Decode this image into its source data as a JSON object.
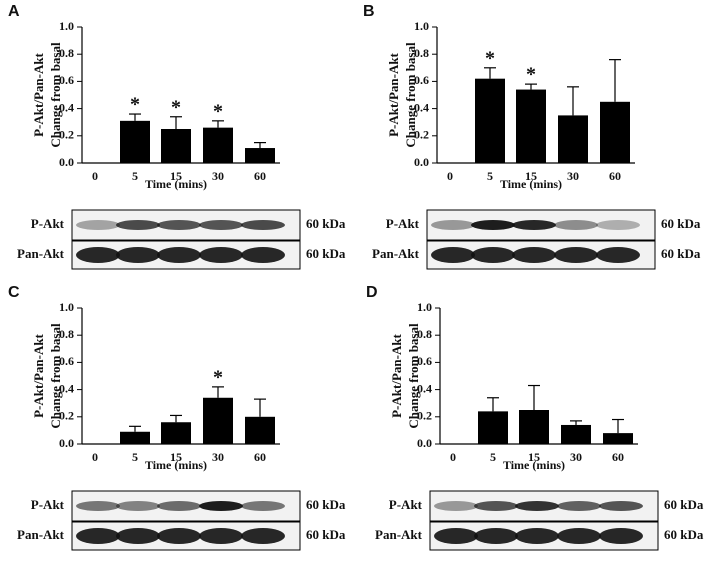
{
  "chart_data": [
    {
      "type": "bar",
      "panel": "A",
      "ylabel": [
        "P-Akt/Pan-Akt",
        "Change from basal"
      ],
      "xlabel": "Time (mins)",
      "categories": [
        "0",
        "5",
        "15",
        "30",
        "60"
      ],
      "values": [
        0,
        0.31,
        0.25,
        0.26,
        0.11
      ],
      "errors": [
        null,
        0.05,
        0.09,
        0.05,
        0.04
      ],
      "color": "#000000",
      "ylim": [
        0,
        1
      ],
      "yticks": [
        {
          "value": 0,
          "label": "0.0"
        },
        0.2,
        0.4,
        0.6,
        0.8,
        {
          "value": 1,
          "label": "1.0"
        }
      ],
      "annotations": [
        {
          "category": "5",
          "text": "*"
        },
        {
          "category": "15",
          "text": "*"
        },
        {
          "category": "30",
          "text": "*"
        }
      ],
      "blot": {
        "rows": [
          "P-Akt",
          "Pan-Akt"
        ],
        "size": "60 kDa"
      }
    },
    {
      "type": "bar",
      "panel": "B",
      "ylabel": [
        "P-Akt/Pan-Akt",
        "Change from basal"
      ],
      "xlabel": "Time (mins)",
      "categories": [
        "0",
        "5",
        "15",
        "30",
        "60"
      ],
      "values": [
        0,
        0.62,
        0.54,
        0.35,
        0.45
      ],
      "errors": [
        null,
        0.08,
        0.04,
        0.21,
        0.31
      ],
      "color": "#000000",
      "ylim": [
        0,
        1
      ],
      "yticks": [
        {
          "value": 0,
          "label": "0.0"
        },
        0.2,
        0.4,
        0.6,
        0.8,
        {
          "value": 1,
          "label": "1.0"
        }
      ],
      "annotations": [
        {
          "category": "5",
          "text": "*"
        },
        {
          "category": "15",
          "text": "*"
        }
      ],
      "blot": {
        "rows": [
          "P-Akt",
          "Pan-Akt"
        ],
        "size": "60 kDa"
      }
    },
    {
      "type": "bar",
      "panel": "C",
      "ylabel": [
        "P-Akt/Pan-Akt",
        "Change from basal"
      ],
      "xlabel": "Time (mins)",
      "categories": [
        "0",
        "5",
        "15",
        "30",
        "60"
      ],
      "values": [
        0,
        0.09,
        0.16,
        0.34,
        0.2
      ],
      "errors": [
        null,
        0.04,
        0.05,
        0.08,
        0.13
      ],
      "color": "#000000",
      "ylim": [
        0,
        1
      ],
      "yticks": [
        {
          "value": 0,
          "label": "0.0"
        },
        0.2,
        0.4,
        0.6,
        0.8,
        {
          "value": 1,
          "label": "1.0"
        }
      ],
      "annotations": [
        {
          "category": "30",
          "text": "*"
        }
      ],
      "blot": {
        "rows": [
          "P-Akt",
          "Pan-Akt"
        ],
        "size": "60 kDa"
      }
    },
    {
      "type": "bar",
      "panel": "D",
      "ylabel": [
        "P-Akt/Pan-Akt",
        "Change from basal"
      ],
      "xlabel": "Time (mins)",
      "categories": [
        "0",
        "5",
        "15",
        "30",
        "60"
      ],
      "values": [
        0,
        0.24,
        0.25,
        0.14,
        0.08
      ],
      "errors": [
        null,
        0.1,
        0.18,
        0.03,
        0.1
      ],
      "color": "#000000",
      "ylim": [
        0,
        1
      ],
      "yticks": [
        {
          "value": 0,
          "label": "0.0"
        },
        0.2,
        0.4,
        0.6,
        0.8,
        {
          "value": 1,
          "label": "1.0"
        }
      ],
      "annotations": [],
      "blot": {
        "rows": [
          "P-Akt",
          "Pan-Akt"
        ],
        "size": "60 kDa"
      }
    }
  ]
}
